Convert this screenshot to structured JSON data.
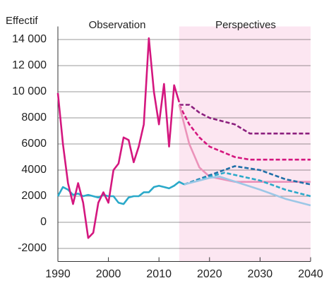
{
  "chart_data": {
    "type": "line",
    "y_label": "Effectif",
    "annotations": [
      "Observation",
      "Perspectives"
    ],
    "xlim": [
      1990,
      2040
    ],
    "xticks": [
      1990,
      2000,
      2010,
      2020,
      2030,
      2040
    ],
    "ylim": [
      -3000,
      15000
    ],
    "yticks": [
      -2000,
      0,
      2000,
      4000,
      6000,
      8000,
      {
        "value": 10000,
        "label": "10 000"
      },
      {
        "value": 12000,
        "label": "12 000"
      },
      {
        "value": 14000,
        "label": "14 000"
      }
    ],
    "grid": true,
    "shade_from": 2014,
    "shade_color": "#fce6f1",
    "series": [
      {
        "color": "#8b1f7e",
        "dash": true,
        "x": [
          2014,
          2016,
          2018,
          2020,
          2025,
          2028,
          2040
        ],
        "values": [
          9000,
          9000,
          8400,
          8000,
          7500,
          6800,
          6800
        ]
      },
      {
        "color": "#d4177f",
        "dash": true,
        "x": [
          2014,
          2016,
          2018,
          2020,
          2025,
          2028,
          2040
        ],
        "values": [
          9000,
          7500,
          6500,
          5800,
          5000,
          4800,
          4800
        ]
      },
      {
        "color": "#eb93ba",
        "dash": false,
        "x": [
          2014,
          2016,
          2018,
          2020,
          2025,
          2040
        ],
        "values": [
          9000,
          6000,
          4200,
          3500,
          3100,
          3100
        ]
      },
      {
        "color": "#eb93ba",
        "dash": true,
        "x": [
          2025,
          2040
        ],
        "values": [
          3100,
          3100
        ]
      },
      {
        "color": "#1f6fa8",
        "dash": true,
        "x": [
          2015,
          2020,
          2025,
          2030,
          2035,
          2040
        ],
        "values": [
          2900,
          3600,
          4300,
          4000,
          3300,
          2900
        ]
      },
      {
        "color": "#2aa9c9",
        "dash": true,
        "x": [
          2015,
          2020,
          2023,
          2030,
          2035,
          2040
        ],
        "values": [
          2900,
          3500,
          3800,
          3200,
          2500,
          2000
        ]
      },
      {
        "color": "#9cc7e6",
        "dash": false,
        "x": [
          2015,
          2020,
          2022,
          2030,
          2035,
          2040
        ],
        "values": [
          2900,
          3400,
          3500,
          2500,
          1800,
          1300
        ]
      },
      {
        "color": "#2aa9c9",
        "dash": false,
        "x": [
          1990,
          1991,
          1992,
          1993,
          1994,
          1995,
          1996,
          1997,
          1998,
          1999,
          2000,
          2001,
          2002,
          2003,
          2004,
          2005,
          2006,
          2007,
          2008,
          2009,
          2010,
          2011,
          2012,
          2013,
          2014,
          2015
        ],
        "values": [
          2000,
          2700,
          2500,
          2100,
          2200,
          2000,
          2100,
          2000,
          1900,
          2100,
          2000,
          2000,
          1500,
          1400,
          1900,
          2000,
          2000,
          2300,
          2300,
          2700,
          2800,
          2700,
          2600,
          2800,
          3100,
          2900
        ]
      },
      {
        "color": "#d4177f",
        "dash": false,
        "x": [
          1990,
          1991,
          1992,
          1993,
          1994,
          1995,
          1996,
          1997,
          1998,
          1999,
          2000,
          2001,
          2002,
          2003,
          2004,
          2005,
          2006,
          2007,
          2008,
          2009,
          2010,
          2011,
          2012,
          2013,
          2014
        ],
        "values": [
          9900,
          6000,
          3000,
          1400,
          3000,
          1500,
          -1200,
          -800,
          1500,
          2300,
          1500,
          4000,
          4500,
          6500,
          6300,
          4600,
          5800,
          7500,
          14100,
          10000,
          7500,
          10600,
          5800,
          10500,
          9200
        ]
      }
    ]
  }
}
